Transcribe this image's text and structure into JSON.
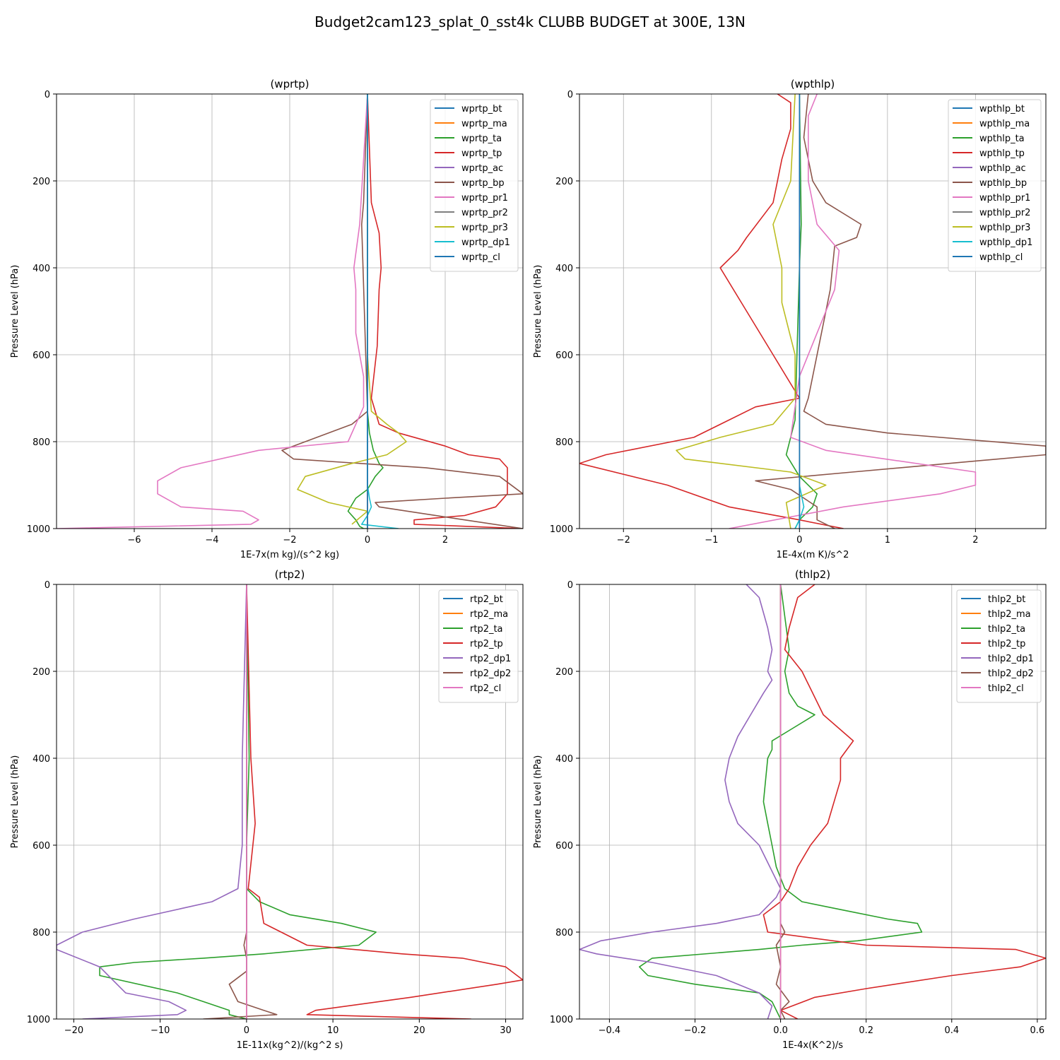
{
  "suptitle": "Budget2cam123_splat_0_sst4k CLUBB BUDGET at 300E, 13N",
  "chart_data": [
    {
      "type": "line",
      "title": "(wprtp)",
      "xlabel": "1E-7x(m kg)/(s^2 kg)",
      "ylabel": "Pressure Level (hPa)",
      "xlim": [
        -8,
        4
      ],
      "ylim": [
        1000,
        0
      ],
      "xticks": [
        -6,
        -4,
        -2,
        0,
        2
      ],
      "yticks": [
        0,
        200,
        400,
        600,
        800,
        1000
      ],
      "grid": true,
      "legend_position": "top-right",
      "series": [
        {
          "name": "wprtp_bt",
          "color": "#1f77b4",
          "x": [
            0,
            0
          ],
          "y": [
            0,
            1000
          ]
        },
        {
          "name": "wprtp_ma",
          "color": "#ff7f0e",
          "x": [
            0,
            0
          ],
          "y": [
            0,
            1000
          ]
        },
        {
          "name": "wprtp_ta",
          "color": "#2ca02c",
          "x": [
            0,
            0,
            0,
            0.05,
            0.15,
            0.3,
            0.4,
            0.2,
            0,
            -0.3,
            -0.5,
            -0.3,
            -0.2,
            -0.1,
            0
          ],
          "y": [
            0,
            600,
            730,
            780,
            820,
            850,
            860,
            880,
            910,
            930,
            960,
            980,
            995,
            1000,
            1000
          ]
        },
        {
          "name": "wprtp_tp",
          "color": "#d62728",
          "x": [
            0,
            0.1,
            0.3,
            0.35,
            0.3,
            0.25,
            0.1,
            0.3,
            0.8,
            2.0,
            2.6,
            3.4,
            3.6,
            3.6,
            3.3,
            2.5,
            1.2,
            1.2,
            4.0
          ],
          "y": [
            0,
            250,
            320,
            400,
            450,
            580,
            700,
            760,
            780,
            810,
            830,
            840,
            860,
            920,
            950,
            970,
            980,
            990,
            1000
          ]
        },
        {
          "name": "wprtp_ac",
          "color": "#9467bd",
          "x": [
            0,
            0
          ],
          "y": [
            0,
            1000
          ]
        },
        {
          "name": "wprtp_bp",
          "color": "#8c564b",
          "x": [
            0,
            -0.1,
            -0.15,
            0,
            -0.4,
            -2.2,
            -1.9,
            1.5,
            3.4,
            4.0,
            2.0,
            0.2,
            0.3,
            2.5,
            4.0
          ],
          "y": [
            0,
            250,
            300,
            730,
            760,
            820,
            840,
            860,
            880,
            920,
            930,
            940,
            950,
            980,
            1000
          ]
        },
        {
          "name": "wprtp_pr1",
          "color": "#e377c2",
          "x": [
            0,
            -0.2,
            -0.35,
            -0.3,
            -0.3,
            -0.1,
            -0.1,
            -0.5,
            -2.8,
            -4.8,
            -5.4,
            -5.4,
            -4.8,
            -3.2,
            -2.8,
            -3.0,
            -8.0
          ],
          "y": [
            0,
            300,
            400,
            450,
            550,
            650,
            720,
            800,
            820,
            860,
            890,
            920,
            950,
            960,
            980,
            990,
            1000
          ]
        },
        {
          "name": "wprtp_pr2",
          "color": "#7f7f7f",
          "x": [
            0,
            0
          ],
          "y": [
            0,
            1000
          ]
        },
        {
          "name": "wprtp_pr3",
          "color": "#bcbd22",
          "x": [
            0,
            0,
            0,
            0.1,
            0.5,
            0.8,
            1.0,
            0.5,
            -0.4,
            -1.6,
            -1.8,
            -1.0,
            0,
            -0.4
          ],
          "y": [
            0,
            300,
            600,
            730,
            760,
            780,
            800,
            830,
            850,
            880,
            910,
            940,
            960,
            990
          ]
        },
        {
          "name": "wprtp_dp1",
          "color": "#17becf",
          "x": [
            0,
            0,
            0.05,
            0.1,
            0,
            -0.15,
            0.8
          ],
          "y": [
            0,
            900,
            930,
            950,
            970,
            990,
            1000
          ]
        },
        {
          "name": "wprtp_cl",
          "color": "#1f77b4",
          "x": [
            0,
            0
          ],
          "y": [
            0,
            1000
          ]
        }
      ]
    },
    {
      "type": "line",
      "title": "(wpthlp)",
      "xlabel": "1E-4x(m K)/s^2",
      "ylabel": "Pressure Level (hPa)",
      "xlim": [
        -2.5,
        2.8
      ],
      "ylim": [
        1000,
        0
      ],
      "xticks": [
        -2,
        -1,
        0,
        1,
        2
      ],
      "yticks": [
        0,
        200,
        400,
        600,
        800,
        1000
      ],
      "grid": true,
      "legend_position": "top-right",
      "series": [
        {
          "name": "wpthlp_bt",
          "color": "#1f77b4",
          "x": [
            0,
            0
          ],
          "y": [
            0,
            1000
          ]
        },
        {
          "name": "wpthlp_ma",
          "color": "#ff7f0e",
          "x": [
            0,
            0
          ],
          "y": [
            0,
            1000
          ]
        },
        {
          "name": "wpthlp_ta",
          "color": "#2ca02c",
          "x": [
            0,
            0.02,
            0,
            -0.05,
            -0.15,
            0,
            0.2,
            0.15,
            0,
            -0.05
          ],
          "y": [
            0,
            300,
            400,
            750,
            830,
            880,
            920,
            950,
            980,
            1000
          ]
        },
        {
          "name": "wpthlp_tp",
          "color": "#d62728",
          "x": [
            -0.25,
            -0.1,
            -0.1,
            -0.2,
            -0.3,
            -0.6,
            -0.7,
            -0.9,
            -0.6,
            -0.3,
            0,
            -0.5,
            -1.2,
            -2.2,
            -2.5,
            -1.5,
            -0.8,
            0,
            0.5
          ],
          "y": [
            0,
            20,
            80,
            150,
            250,
            330,
            360,
            400,
            500,
            600,
            700,
            720,
            790,
            830,
            850,
            900,
            950,
            980,
            1000
          ]
        },
        {
          "name": "wpthlp_ac",
          "color": "#9467bd",
          "x": [
            0,
            0
          ],
          "y": [
            0,
            1000
          ]
        },
        {
          "name": "wpthlp_bp",
          "color": "#8c564b",
          "x": [
            0.1,
            0.05,
            0.15,
            0.3,
            0.7,
            0.65,
            0.4,
            0.35,
            0.1,
            0.05,
            0.3,
            1.0,
            2.8,
            2.8,
            0.6,
            -0.5,
            -0.1,
            0.2,
            0.2,
            0.4
          ],
          "y": [
            0,
            100,
            200,
            250,
            300,
            330,
            350,
            450,
            700,
            730,
            760,
            780,
            810,
            830,
            870,
            890,
            910,
            950,
            980,
            1000
          ]
        },
        {
          "name": "wpthlp_pr1",
          "color": "#e377c2",
          "x": [
            0.2,
            0.1,
            0.1,
            0.2,
            0.45,
            0.4,
            0.2,
            0,
            -0.1,
            0.3,
            2.0,
            2.0,
            1.6,
            0.5,
            -0.8
          ],
          "y": [
            0,
            50,
            200,
            300,
            360,
            450,
            550,
            650,
            790,
            820,
            870,
            900,
            920,
            950,
            1000
          ]
        },
        {
          "name": "wpthlp_pr2",
          "color": "#7f7f7f",
          "x": [
            0,
            0
          ],
          "y": [
            0,
            1000
          ]
        },
        {
          "name": "wpthlp_pr3",
          "color": "#bcbd22",
          "x": [
            -0.05,
            -0.1,
            -0.3,
            -0.2,
            -0.2,
            -0.05,
            -0.05,
            -0.3,
            -0.9,
            -1.4,
            -1.3,
            -0.1,
            0.3,
            -0.15,
            -0.1
          ],
          "y": [
            0,
            200,
            300,
            400,
            480,
            600,
            700,
            760,
            790,
            820,
            840,
            870,
            900,
            940,
            1000
          ]
        },
        {
          "name": "wpthlp_dp1",
          "color": "#17becf",
          "x": [
            0,
            0,
            0.05,
            0,
            -0.05
          ],
          "y": [
            0,
            900,
            950,
            980,
            1000
          ]
        },
        {
          "name": "wpthlp_cl",
          "color": "#1f77b4",
          "x": [
            0,
            0
          ],
          "y": [
            0,
            1000
          ]
        }
      ]
    },
    {
      "type": "line",
      "title": "(rtp2)",
      "xlabel": "1E-11x(kg^2)/(kg^2 s)",
      "ylabel": "Pressure Level (hPa)",
      "xlim": [
        -22,
        32
      ],
      "ylim": [
        1000,
        0
      ],
      "xticks": [
        -20,
        -10,
        0,
        10,
        20,
        30
      ],
      "yticks": [
        0,
        200,
        400,
        600,
        800,
        1000
      ],
      "grid": true,
      "legend_position": "top-right",
      "series": [
        {
          "name": "rtp2_bt",
          "color": "#1f77b4",
          "x": [
            0,
            0
          ],
          "y": [
            0,
            1000
          ]
        },
        {
          "name": "rtp2_ma",
          "color": "#ff7f0e",
          "x": [
            0,
            0
          ],
          "y": [
            0,
            1000
          ]
        },
        {
          "name": "rtp2_ta",
          "color": "#2ca02c",
          "x": [
            0,
            0.3,
            0,
            0,
            1.5,
            5,
            11,
            15,
            13,
            2,
            -5,
            -13,
            -17,
            -17,
            -8,
            -5,
            -2,
            -2,
            0
          ],
          "y": [
            0,
            400,
            600,
            700,
            730,
            760,
            780,
            800,
            830,
            850,
            860,
            870,
            880,
            900,
            940,
            960,
            980,
            990,
            1000
          ]
        },
        {
          "name": "rtp2_tp",
          "color": "#d62728",
          "x": [
            0,
            0.5,
            1.0,
            0.2,
            1.5,
            2,
            4,
            7,
            18,
            25,
            30,
            32,
            29,
            19,
            8,
            7,
            26
          ],
          "y": [
            0,
            400,
            550,
            700,
            720,
            780,
            800,
            830,
            850,
            860,
            880,
            910,
            920,
            950,
            980,
            990,
            1000
          ]
        },
        {
          "name": "rtp2_dp1",
          "color": "#9467bd",
          "x": [
            0,
            -0.5,
            -0.5,
            -1,
            -4,
            -13,
            -19,
            -22,
            -22,
            -17,
            -16,
            -14,
            -9,
            -7,
            -8,
            -19
          ],
          "y": [
            0,
            400,
            600,
            700,
            730,
            770,
            800,
            830,
            840,
            880,
            900,
            940,
            960,
            980,
            990,
            1000
          ]
        },
        {
          "name": "rtp2_dp2",
          "color": "#8c564b",
          "x": [
            0,
            0,
            -0.3,
            0,
            0,
            -2,
            -1,
            2,
            3.5,
            -5,
            0
          ],
          "y": [
            0,
            800,
            830,
            860,
            890,
            920,
            960,
            980,
            990,
            1000,
            1000
          ]
        },
        {
          "name": "rtp2_cl",
          "color": "#e377c2",
          "x": [
            0,
            0
          ],
          "y": [
            0,
            1000
          ]
        }
      ]
    },
    {
      "type": "line",
      "title": "(thlp2)",
      "xlabel": "1E-4x(K^2)/s",
      "ylabel": "Pressure Level (hPa)",
      "xlim": [
        -0.47,
        0.62
      ],
      "ylim": [
        1000,
        0
      ],
      "xticks": [
        -0.4,
        -0.2,
        0.0,
        0.2,
        0.4,
        0.6
      ],
      "yticks": [
        0,
        200,
        400,
        600,
        800,
        1000
      ],
      "grid": true,
      "legend_position": "top-right",
      "series": [
        {
          "name": "thlp2_bt",
          "color": "#1f77b4",
          "x": [
            0,
            0
          ],
          "y": [
            0,
            1000
          ]
        },
        {
          "name": "thlp2_ma",
          "color": "#ff7f0e",
          "x": [
            0,
            0
          ],
          "y": [
            0,
            1000
          ]
        },
        {
          "name": "thlp2_ta",
          "color": "#2ca02c",
          "x": [
            0,
            0.02,
            0.01,
            0.02,
            0.04,
            0.08,
            0.03,
            -0.02,
            -0.02,
            -0.03,
            -0.04,
            -0.03,
            -0.02,
            -0.01,
            0.01,
            0.05,
            0.15,
            0.25,
            0.32,
            0.33,
            0.18,
            0.05,
            -0.05,
            -0.3,
            -0.33,
            -0.31,
            -0.2,
            -0.05,
            -0.02,
            0
          ],
          "y": [
            0,
            150,
            200,
            250,
            280,
            300,
            330,
            360,
            380,
            400,
            500,
            550,
            600,
            650,
            700,
            730,
            750,
            770,
            780,
            800,
            820,
            830,
            840,
            860,
            880,
            900,
            920,
            940,
            960,
            1000
          ]
        },
        {
          "name": "thlp2_tp",
          "color": "#d62728",
          "x": [
            0.08,
            0.04,
            0.02,
            0.01,
            0.05,
            0.1,
            0.17,
            0.14,
            0.14,
            0.11,
            0.07,
            0.04,
            0.02,
            0,
            -0.04,
            -0.03,
            0.2,
            0.55,
            0.62,
            0.56,
            0.4,
            0.2,
            0.08,
            0,
            0.04
          ],
          "y": [
            0,
            30,
            100,
            150,
            200,
            300,
            360,
            400,
            450,
            550,
            600,
            650,
            700,
            730,
            760,
            800,
            830,
            840,
            860,
            880,
            900,
            930,
            950,
            980,
            1000
          ]
        },
        {
          "name": "thlp2_dp1",
          "color": "#9467bd",
          "x": [
            -0.08,
            -0.05,
            -0.03,
            -0.02,
            -0.03,
            -0.02,
            -0.04,
            -0.07,
            -0.1,
            -0.12,
            -0.13,
            -0.12,
            -0.1,
            -0.05,
            0,
            -0.01,
            -0.05,
            -0.15,
            -0.3,
            -0.42,
            -0.47,
            -0.43,
            -0.3,
            -0.15,
            -0.05,
            -0.02,
            -0.03
          ],
          "y": [
            0,
            30,
            100,
            150,
            200,
            220,
            250,
            300,
            350,
            400,
            450,
            500,
            550,
            600,
            700,
            720,
            760,
            780,
            800,
            820,
            840,
            850,
            870,
            900,
            940,
            970,
            1000
          ]
        },
        {
          "name": "thlp2_dp2",
          "color": "#8c564b",
          "x": [
            0,
            0,
            0.01,
            -0.01,
            0,
            -0.01,
            0.02,
            0,
            0.01
          ],
          "y": [
            0,
            780,
            800,
            830,
            880,
            920,
            960,
            980,
            1000
          ]
        },
        {
          "name": "thlp2_cl",
          "color": "#e377c2",
          "x": [
            0,
            0
          ],
          "y": [
            0,
            1000
          ]
        }
      ]
    }
  ]
}
